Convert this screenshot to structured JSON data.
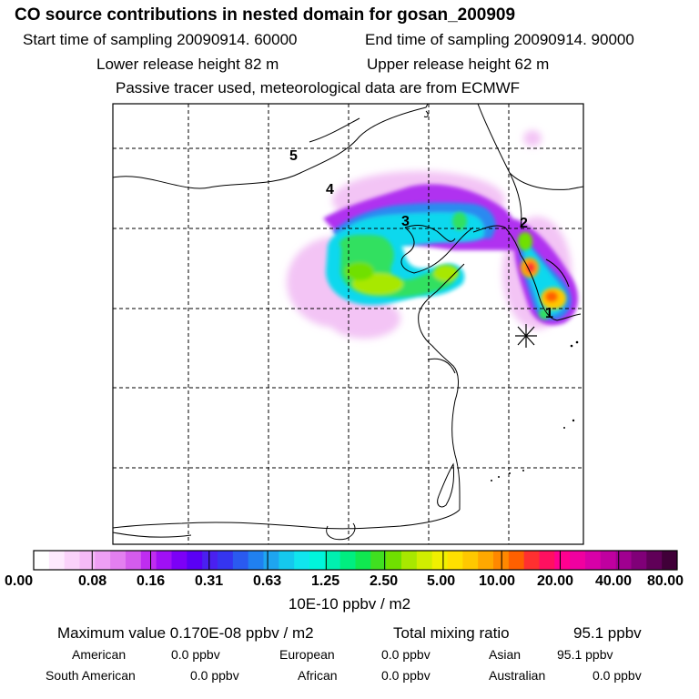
{
  "header": {
    "title": "CO  source contributions in nested domain for gosan_200909",
    "start_time": "Start time of sampling 20090914. 60000",
    "end_time": "End time of sampling 20090914. 90000",
    "lower_release": "Lower release height   82 m",
    "upper_release": "Upper release height   62 m",
    "note": "Passive tracer used, meteorological data are from ECMWF"
  },
  "map": {
    "point_labels": [
      "5",
      "4",
      "3",
      "2",
      "1"
    ],
    "receptor_symbol": "asterisk"
  },
  "colorbar": {
    "ticks": [
      "0.00",
      "0.08",
      "0.16",
      "0.31",
      "0.63",
      "1.25",
      "2.50",
      "5.00",
      "10.00",
      "20.00",
      "40.00",
      "80.00"
    ],
    "units": "10E-10 ppbv / m2",
    "colors": [
      "#ffffff",
      "#fde9fd",
      "#fad2fa",
      "#f5baf7",
      "#ee9ff4",
      "#e37ff0",
      "#d45ced",
      "#bf2df0",
      "#a010f5",
      "#7c00f7",
      "#5a00f5",
      "#4a20f0",
      "#3535f0",
      "#2a5af0",
      "#2080f0",
      "#1ea5f0",
      "#15c8ee",
      "#10e5ee",
      "#00f5dc",
      "#00f0b0",
      "#00ee80",
      "#10e850",
      "#40e020",
      "#70e000",
      "#a8e800",
      "#d0ee00",
      "#f0f000",
      "#ffe000",
      "#ffc800",
      "#ffa800",
      "#ff8800",
      "#ff6000",
      "#ff3030",
      "#ff1060",
      "#ff0090",
      "#f000a0",
      "#d800a8",
      "#c000a0",
      "#a00090",
      "#800078",
      "#600058",
      "#400038"
    ]
  },
  "summary": {
    "max_label": "Maximum value  0.170E-08 ppbv / m2",
    "total_label": "Total mixing ratio",
    "total_value": "95.1 ppbv"
  },
  "regions": [
    {
      "name": "American",
      "value": "0.0 ppbv"
    },
    {
      "name": "European",
      "value": "0.0 ppbv"
    },
    {
      "name": "Asian",
      "value": "95.1 ppbv"
    },
    {
      "name": "South American",
      "value": "0.0 ppbv"
    },
    {
      "name": "African",
      "value": "0.0 ppbv"
    },
    {
      "name": "Australian",
      "value": "0.0 ppbv"
    }
  ]
}
